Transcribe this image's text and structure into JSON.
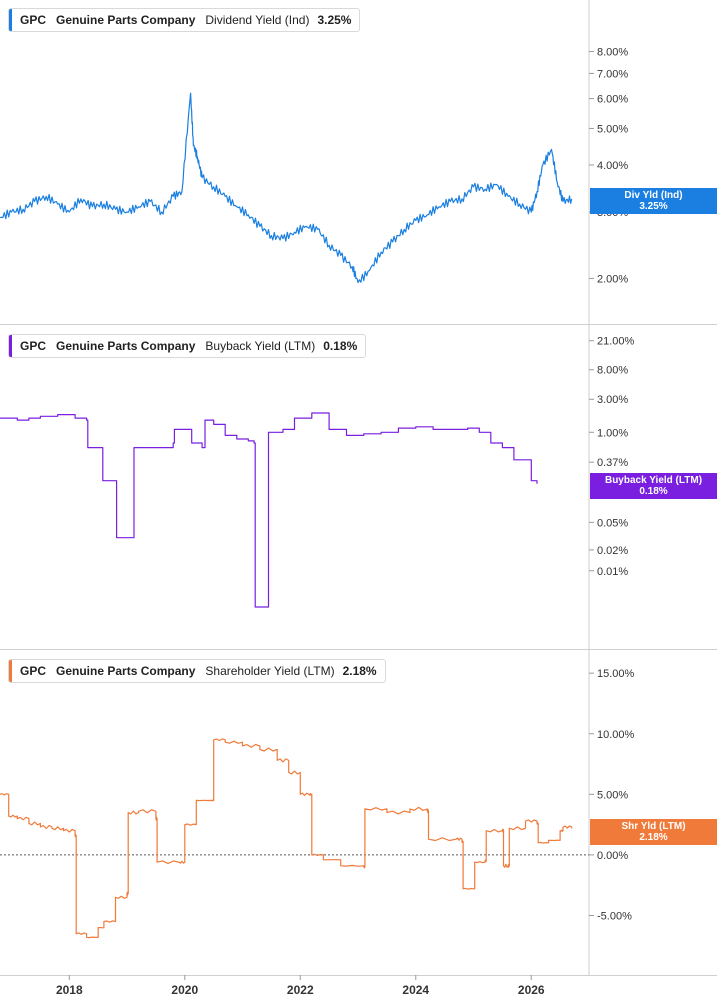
{
  "chart_data": [
    {
      "type": "line",
      "ticker": "GPC",
      "company": "Genuine Parts Company",
      "metric": "Dividend Yield (Ind)",
      "current_value": "3.25%",
      "badge_label": "Div Yld (Ind)",
      "badge_value": "3.25%",
      "color": "#1a7fe0",
      "scale": "log",
      "yticks": [
        {
          "v": 8,
          "label": "8.00%"
        },
        {
          "v": 7,
          "label": "7.00%"
        },
        {
          "v": 6,
          "label": "6.00%"
        },
        {
          "v": 5,
          "label": "5.00%"
        },
        {
          "v": 4,
          "label": "4.00%"
        },
        {
          "v": 3,
          "label": "3.00%"
        },
        {
          "v": 2,
          "label": "2.00%"
        }
      ],
      "ylim": [
        1.7,
        10
      ],
      "series": [
        {
          "x": [
            2016.8,
            2017.0,
            2017.2,
            2017.4,
            2017.6,
            2017.8,
            2018.0,
            2018.2,
            2018.4,
            2018.6,
            2018.8,
            2019.0,
            2019.2,
            2019.4,
            2019.6,
            2019.8,
            2019.95,
            2020.1,
            2020.15,
            2020.22,
            2020.3,
            2020.5,
            2020.7,
            2020.9,
            2021.1,
            2021.3,
            2021.5,
            2021.7,
            2021.9,
            2022.1,
            2022.3,
            2022.5,
            2022.7,
            2022.9,
            2023.0,
            2023.2,
            2023.4,
            2023.6,
            2023.8,
            2024.0,
            2024.2,
            2024.4,
            2024.6,
            2024.8,
            2025.0,
            2025.2,
            2025.4,
            2025.6,
            2025.8,
            2026.0,
            2026.1,
            2026.2,
            2026.35,
            2026.45,
            2026.55,
            2026.7
          ],
          "y": [
            2.9,
            3.0,
            3.05,
            3.2,
            3.3,
            3.15,
            3.0,
            3.25,
            3.1,
            3.15,
            3.05,
            3.0,
            3.1,
            3.2,
            3.0,
            3.3,
            3.4,
            6.2,
            4.5,
            4.2,
            3.7,
            3.5,
            3.3,
            3.1,
            2.95,
            2.75,
            2.6,
            2.55,
            2.65,
            2.75,
            2.7,
            2.45,
            2.3,
            2.15,
            1.95,
            2.1,
            2.35,
            2.5,
            2.7,
            2.85,
            2.95,
            3.1,
            3.2,
            3.25,
            3.5,
            3.45,
            3.55,
            3.3,
            3.15,
            3.0,
            3.4,
            4.0,
            4.4,
            3.6,
            3.2,
            3.25
          ]
        }
      ]
    },
    {
      "type": "line",
      "ticker": "GPC",
      "company": "Genuine Parts Company",
      "metric": "Buyback Yield (LTM)",
      "current_value": "0.18%",
      "badge_label": "Buyback Yield (LTM)",
      "badge_value": "0.18%",
      "color": "#7a1fe0",
      "scale": "log",
      "yticks": [
        {
          "v": 21,
          "label": "21.00%"
        },
        {
          "v": 8,
          "label": "8.00%"
        },
        {
          "v": 3,
          "label": "3.00%"
        },
        {
          "v": 1,
          "label": "1.00%"
        },
        {
          "v": 0.37,
          "label": "0.37%"
        },
        {
          "v": 0.05,
          "label": "0.05%"
        },
        {
          "v": 0.02,
          "label": "0.02%"
        },
        {
          "v": 0.01,
          "label": "0.01%"
        }
      ],
      "ylim": [
        0.001,
        30
      ],
      "series": [
        {
          "x": [
            2016.8,
            2017.1,
            2017.3,
            2017.5,
            2017.8,
            2018.1,
            2018.3,
            2018.32,
            2018.55,
            2018.58,
            2018.8,
            2018.82,
            2019.1,
            2019.12,
            2019.5,
            2019.8,
            2019.82,
            2020.1,
            2020.12,
            2020.3,
            2020.35,
            2020.5,
            2020.7,
            2020.9,
            2021.1,
            2021.2,
            2021.22,
            2021.42,
            2021.45,
            2021.7,
            2021.9,
            2022.2,
            2022.5,
            2022.8,
            2023.1,
            2023.4,
            2023.7,
            2024.0,
            2024.3,
            2024.6,
            2024.9,
            2025.1,
            2025.3,
            2025.5,
            2025.7,
            2025.9,
            2026.0,
            2026.1
          ],
          "y": [
            1.6,
            1.5,
            1.6,
            1.7,
            1.8,
            1.6,
            1.5,
            0.6,
            0.6,
            0.2,
            0.2,
            0.03,
            0.03,
            0.6,
            0.6,
            0.7,
            1.1,
            1.1,
            0.7,
            0.6,
            1.5,
            1.3,
            0.9,
            0.8,
            0.75,
            0.7,
            0.003,
            0.003,
            1.0,
            1.1,
            1.6,
            1.9,
            1.1,
            0.9,
            0.95,
            1.0,
            1.15,
            1.2,
            1.1,
            1.1,
            1.15,
            1.0,
            0.7,
            0.6,
            0.4,
            0.4,
            0.2,
            0.18
          ]
        }
      ]
    },
    {
      "type": "line",
      "ticker": "GPC",
      "company": "Genuine Parts Company",
      "metric": "Shareholder Yield (LTM)",
      "current_value": "2.18%",
      "badge_label": "Shr Yld (LTM)",
      "badge_value": "2.18%",
      "color": "#f07a3a",
      "scale": "linear",
      "yticks": [
        {
          "v": 15,
          "label": "15.00%"
        },
        {
          "v": 10,
          "label": "10.00%"
        },
        {
          "v": 5,
          "label": "5.00%"
        },
        {
          "v": 0,
          "label": "0.00%"
        },
        {
          "v": -5,
          "label": "-5.00%"
        }
      ],
      "ylim": [
        -9.5,
        16.5
      ],
      "zero_line": true,
      "series": [
        {
          "x": [
            2016.8,
            2016.95,
            2017.1,
            2017.3,
            2017.5,
            2017.7,
            2017.9,
            2018.1,
            2018.12,
            2018.3,
            2018.5,
            2018.6,
            2018.8,
            2019.0,
            2019.02,
            2019.2,
            2019.5,
            2019.52,
            2019.9,
            2020.0,
            2020.2,
            2020.45,
            2020.5,
            2020.7,
            2021.0,
            2021.3,
            2021.6,
            2021.8,
            2022.0,
            2022.15,
            2022.2,
            2022.4,
            2022.7,
            2023.1,
            2023.12,
            2023.5,
            2023.9,
            2024.2,
            2024.22,
            2024.7,
            2024.8,
            2024.82,
            2025.0,
            2025.02,
            2025.2,
            2025.22,
            2025.5,
            2025.52,
            2025.6,
            2025.62,
            2025.9,
            2026.1,
            2026.12,
            2026.3,
            2026.5,
            2026.55,
            2026.7
          ],
          "y": [
            5.0,
            3.2,
            3.0,
            2.6,
            2.3,
            2.2,
            2.0,
            1.6,
            -6.5,
            -6.8,
            -6.0,
            -5.5,
            -3.5,
            -3.2,
            3.5,
            3.6,
            3.0,
            -0.6,
            -0.6,
            2.5,
            4.5,
            4.5,
            9.5,
            9.3,
            9.0,
            8.7,
            7.8,
            6.8,
            5.0,
            5.0,
            0.0,
            -0.4,
            -0.9,
            -1.0,
            3.8,
            3.5,
            3.8,
            3.6,
            1.3,
            1.3,
            1.1,
            -2.8,
            -2.8,
            -0.6,
            -0.5,
            2.0,
            2.0,
            -0.9,
            -0.9,
            2.2,
            2.8,
            2.6,
            1.0,
            1.2,
            2.0,
            2.3,
            2.18
          ]
        }
      ]
    }
  ],
  "x_axis": {
    "ticks": [
      {
        "v": 2018,
        "label": "2018"
      },
      {
        "v": 2020,
        "label": "2020"
      },
      {
        "v": 2022,
        "label": "2022"
      },
      {
        "v": 2024,
        "label": "2024"
      },
      {
        "v": 2026,
        "label": "2026"
      }
    ]
  }
}
